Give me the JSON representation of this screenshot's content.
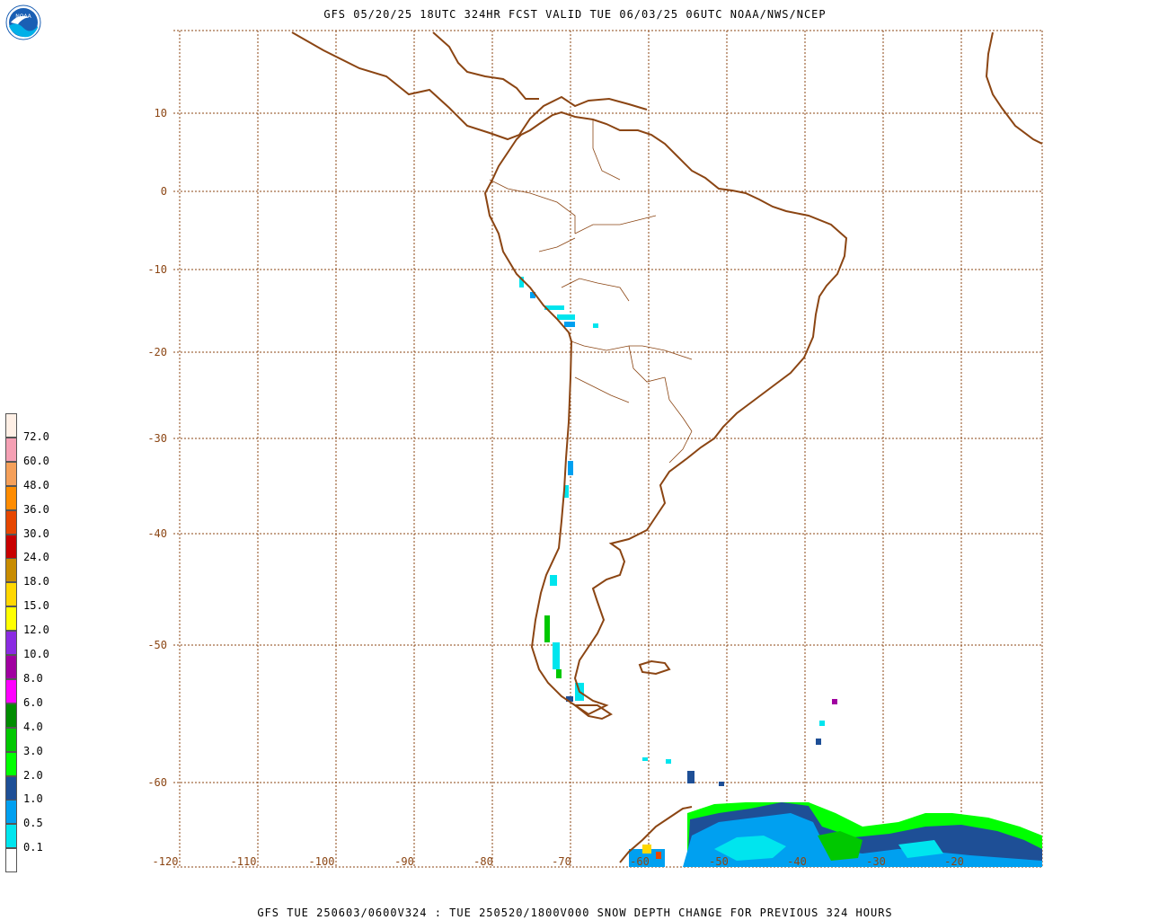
{
  "header": {
    "title": "GFS 05/20/25 18UTC 324HR FCST VALID TUE 06/03/25 06UTC NOAA/NWS/NCEP",
    "logo_text": "NOAA"
  },
  "footer": {
    "text": "GFS TUE 250603/0600V324 : TUE 250520/1800V000 SNOW DEPTH CHANGE FOR PREVIOUS 324 HOURS"
  },
  "map": {
    "coastline_color": "#8b4513",
    "grid_color": "#8b4513",
    "lat_labels": [
      "10",
      "0",
      "-10",
      "-20",
      "-30",
      "-40",
      "-50",
      "-60"
    ],
    "lon_labels": [
      "-120",
      "-110",
      "-100",
      "-90",
      "-80",
      "-70",
      "-60",
      "-50",
      "-40",
      "-30",
      "-20"
    ]
  },
  "legend": {
    "colors": [
      "#ffffff",
      "#00e5ee",
      "#00a0f0",
      "#1e4f96",
      "#00ff00",
      "#00c800",
      "#008c00",
      "#ff00ff",
      "#a000a0",
      "#8a2be2",
      "#ffff00",
      "#ffd700",
      "#c88c00",
      "#c80000",
      "#e64600",
      "#ff8c00",
      "#f5a05a",
      "#f5a0b4",
      "#fff0e6"
    ],
    "labels": [
      "0.1",
      "0.5",
      "1.0",
      "2.0",
      "3.0",
      "4.0",
      "6.0",
      "8.0",
      "10.0",
      "12.0",
      "15.0",
      "18.0",
      "24.0",
      "30.0",
      "36.0",
      "48.0",
      "60.0",
      "72.0"
    ]
  }
}
